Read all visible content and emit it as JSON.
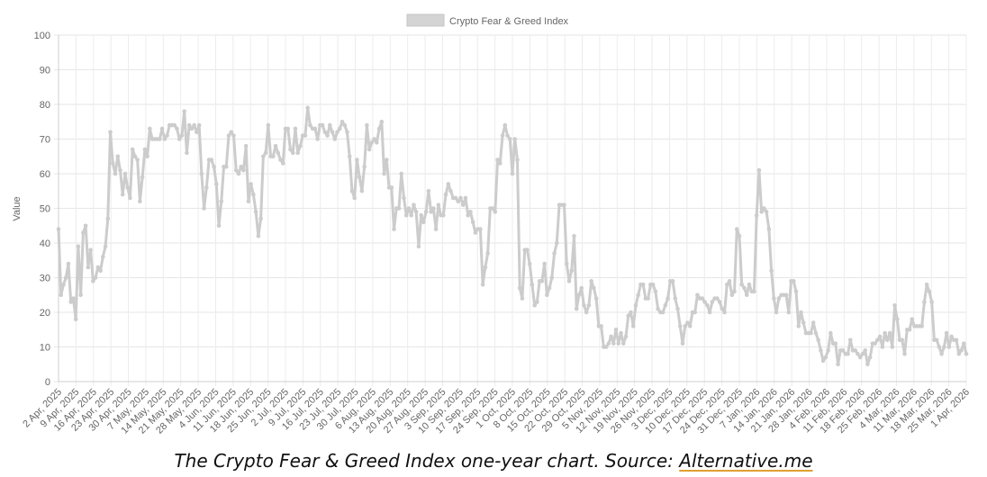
{
  "chart_data": {
    "type": "line",
    "title": "",
    "legend": {
      "label": "Crypto Fear & Greed Index",
      "position": "top"
    },
    "xlabel": "",
    "ylabel": "Value",
    "ylim": [
      0,
      100
    ],
    "yticks": [
      0,
      10,
      20,
      30,
      40,
      50,
      60,
      70,
      80,
      90,
      100
    ],
    "grid": true,
    "xtick_labels": [
      "2 Apr, 2025",
      "9 Apr, 2025",
      "16 Apr, 2025",
      "23 Apr, 2025",
      "30 Apr, 2025",
      "7 May, 2025",
      "14 May, 2025",
      "21 May, 2025",
      "28 May, 2025",
      "4 Jun, 2025",
      "11 Jun, 2025",
      "18 Jun, 2025",
      "25 Jun, 2025",
      "2 Jul, 2025",
      "9 Jul, 2025",
      "16 Jul, 2025",
      "23 Jul, 2025",
      "30 Jul, 2025",
      "6 Aug, 2025",
      "13 Aug, 2025",
      "20 Aug, 2025",
      "27 Aug, 2025",
      "3 Sep, 2025",
      "10 Sep, 2025",
      "17 Sep, 2025",
      "24 Sep, 2025",
      "1 Oct, 2025",
      "8 Oct, 2025",
      "15 Oct, 2025",
      "22 Oct, 2025",
      "29 Oct, 2025",
      "5 Nov, 2025",
      "12 Nov, 2025",
      "19 Nov, 2025",
      "26 Nov, 2025",
      "3 Dec, 2025",
      "10 Dec, 2025",
      "17 Dec, 2025",
      "24 Dec, 2025",
      "31 Dec, 2025",
      "7 Jan, 2026",
      "14 Jan, 2026",
      "21 Jan, 2026",
      "28 Jan, 2026",
      "4 Feb, 2026",
      "11 Feb, 2026",
      "18 Feb, 2026",
      "25 Feb, 2026",
      "4 Mar, 2026",
      "11 Mar, 2026",
      "18 Mar, 2026",
      "25 Mar, 2026",
      "1 Apr, 2026"
    ],
    "series": [
      {
        "name": "Crypto Fear & Greed Index",
        "color": "#cccccc",
        "values": [
          44,
          25,
          28,
          30,
          34,
          23,
          24,
          18,
          39,
          25,
          43,
          45,
          33,
          38,
          29,
          30,
          33,
          32,
          36,
          39,
          47,
          72,
          63,
          60,
          65,
          61,
          54,
          60,
          56,
          53,
          67,
          65,
          64,
          52,
          59,
          67,
          65,
          73,
          70,
          70,
          70,
          70,
          73,
          70,
          71,
          74,
          74,
          74,
          73,
          70,
          71,
          78,
          66,
          74,
          73,
          74,
          72,
          74,
          60,
          50,
          56,
          64,
          64,
          62,
          57,
          45,
          52,
          62,
          62,
          71,
          72,
          71,
          61,
          60,
          62,
          61,
          68,
          52,
          57,
          54,
          49,
          42,
          47,
          65,
          66,
          74,
          65,
          65,
          68,
          66,
          64,
          63,
          73,
          73,
          67,
          66,
          73,
          66,
          68,
          71,
          71,
          79,
          74,
          73,
          73,
          70,
          74,
          74,
          72,
          71,
          74,
          72,
          70,
          72,
          73,
          75,
          74,
          72,
          65,
          55,
          53,
          64,
          59,
          55,
          62,
          74,
          67,
          69,
          70,
          69,
          73,
          75,
          60,
          64,
          56,
          56,
          44,
          50,
          50,
          60,
          53,
          48,
          50,
          48,
          51,
          49,
          39,
          48,
          46,
          49,
          55,
          49,
          50,
          44,
          51,
          48,
          48,
          54,
          57,
          55,
          53,
          53,
          52,
          53,
          51,
          53,
          48,
          49,
          46,
          43,
          44,
          44,
          28,
          33,
          37,
          50,
          50,
          49,
          64,
          63,
          71,
          74,
          71,
          70,
          60,
          70,
          64,
          27,
          24,
          38,
          38,
          34,
          28,
          22,
          23,
          29,
          29,
          34,
          25,
          27,
          30,
          37,
          40,
          51,
          51,
          51,
          34,
          29,
          32,
          42,
          21,
          25,
          27,
          22,
          20,
          22,
          29,
          27,
          24,
          16,
          16,
          10,
          10,
          11,
          13,
          11,
          15,
          11,
          14,
          11,
          13,
          19,
          20,
          16,
          22,
          25,
          28,
          28,
          24,
          24,
          28,
          28,
          26,
          21,
          20,
          20,
          22,
          24,
          29,
          29,
          24,
          21,
          16,
          11,
          16,
          17,
          16,
          20,
          20,
          25,
          24,
          24,
          23,
          22,
          20,
          23,
          24,
          24,
          23,
          21,
          20,
          28,
          29,
          25,
          26,
          44,
          42,
          28,
          27,
          25,
          28,
          26,
          26,
          48,
          61,
          49,
          50,
          49,
          44,
          32,
          24,
          20,
          24,
          25,
          25,
          25,
          20,
          29,
          29,
          26,
          16,
          20,
          17,
          14,
          14,
          14,
          17,
          14,
          12,
          9,
          6,
          7,
          9,
          14,
          11,
          11,
          5,
          9,
          9,
          8,
          8,
          12,
          9,
          9,
          8,
          7,
          8,
          9,
          5,
          7,
          11,
          11,
          12,
          13,
          10,
          14,
          12,
          14,
          10,
          22,
          18,
          12,
          12,
          8,
          15,
          15,
          18,
          16,
          16,
          16,
          16,
          23,
          28,
          26,
          23,
          12,
          12,
          10,
          8,
          10,
          14,
          10,
          13,
          12,
          12,
          8,
          9,
          11,
          8
        ]
      }
    ]
  },
  "caption": {
    "text": "The Crypto Fear & Greed Index one-year chart. Source: ",
    "link_text": "Alternative.me"
  }
}
